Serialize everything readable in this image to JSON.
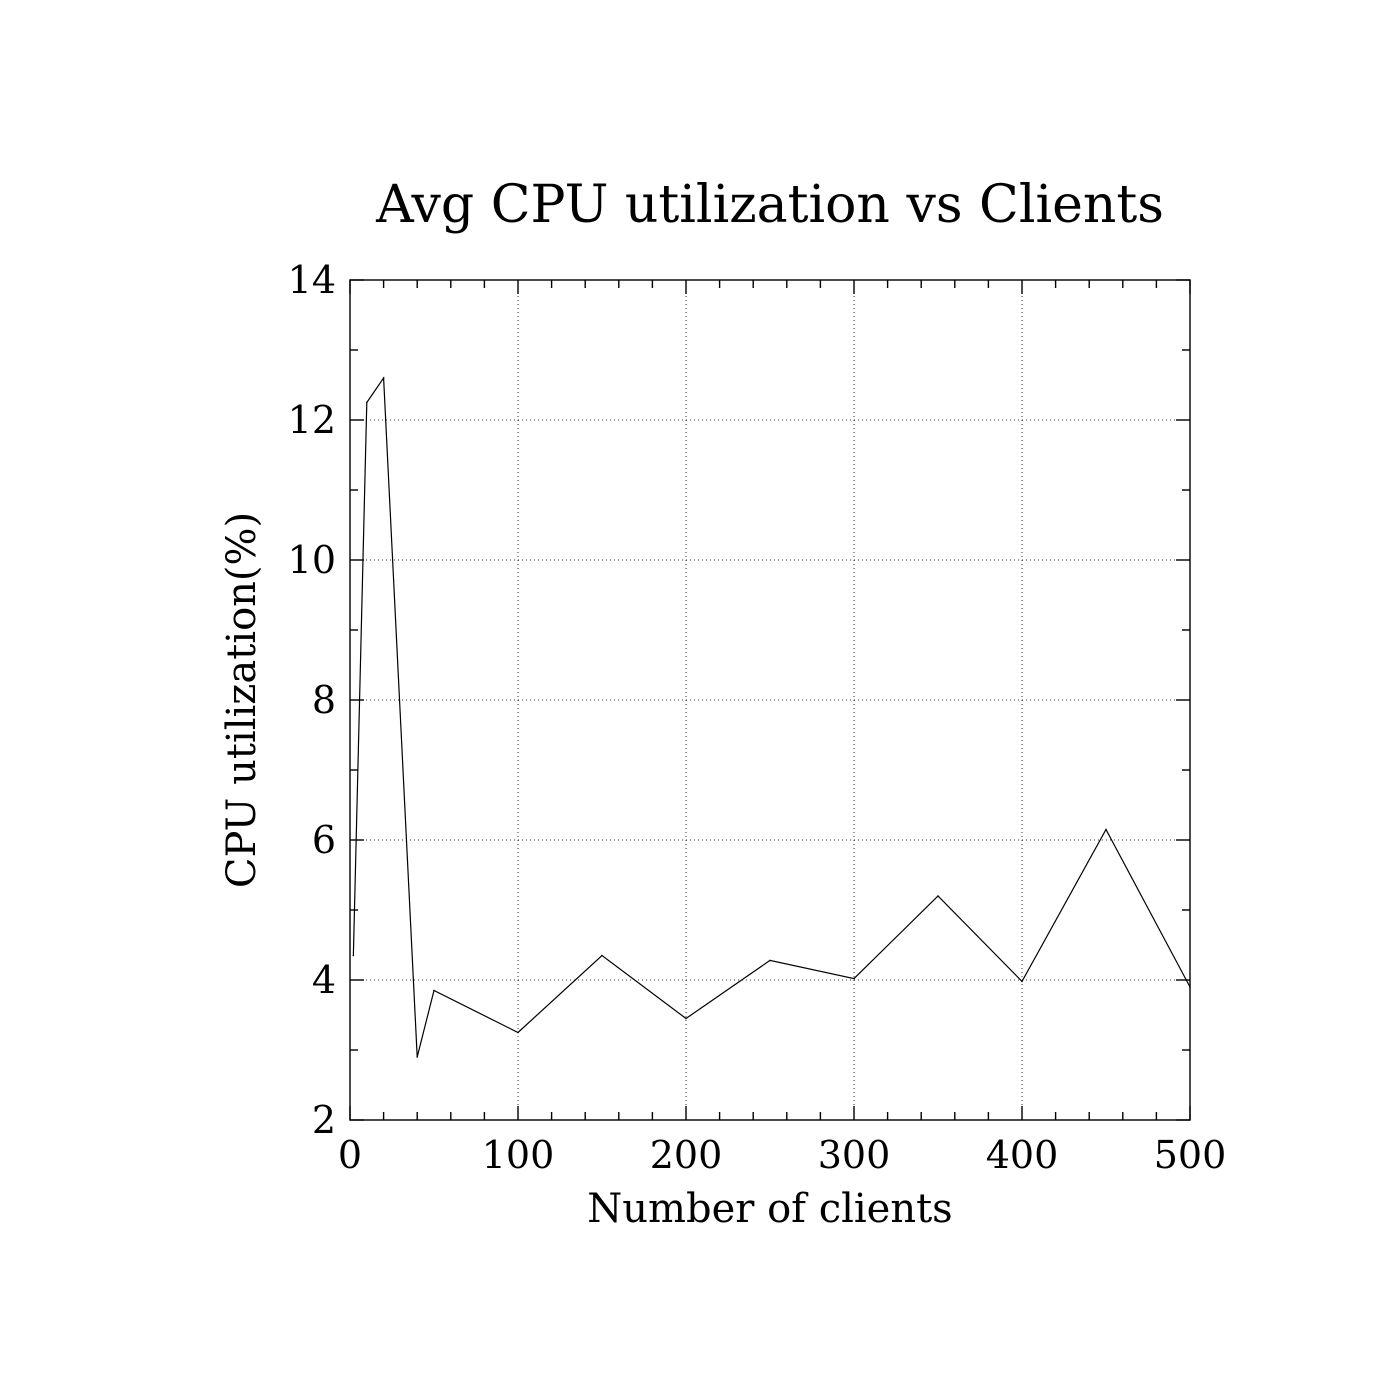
{
  "chart_data": {
    "type": "line",
    "title": "Avg CPU utilization vs Clients",
    "xlabel": "Number of clients",
    "ylabel": "CPU utilization(%)",
    "xlim": [
      0,
      500
    ],
    "ylim": [
      2,
      14
    ],
    "xticks": [
      0,
      100,
      200,
      300,
      400,
      500
    ],
    "yticks": [
      2,
      4,
      6,
      8,
      10,
      12,
      14
    ],
    "x_minor_step": 20,
    "y_minor_step": 1,
    "grid": true,
    "series": [
      {
        "x": [
          2,
          10,
          20,
          40,
          50,
          100,
          150,
          200,
          250,
          300,
          350,
          400,
          450,
          500
        ],
        "y": [
          4.35,
          12.25,
          12.6,
          2.9,
          3.85,
          3.25,
          4.35,
          3.45,
          4.28,
          4.02,
          5.2,
          3.98,
          6.15,
          3.9
        ]
      }
    ]
  }
}
